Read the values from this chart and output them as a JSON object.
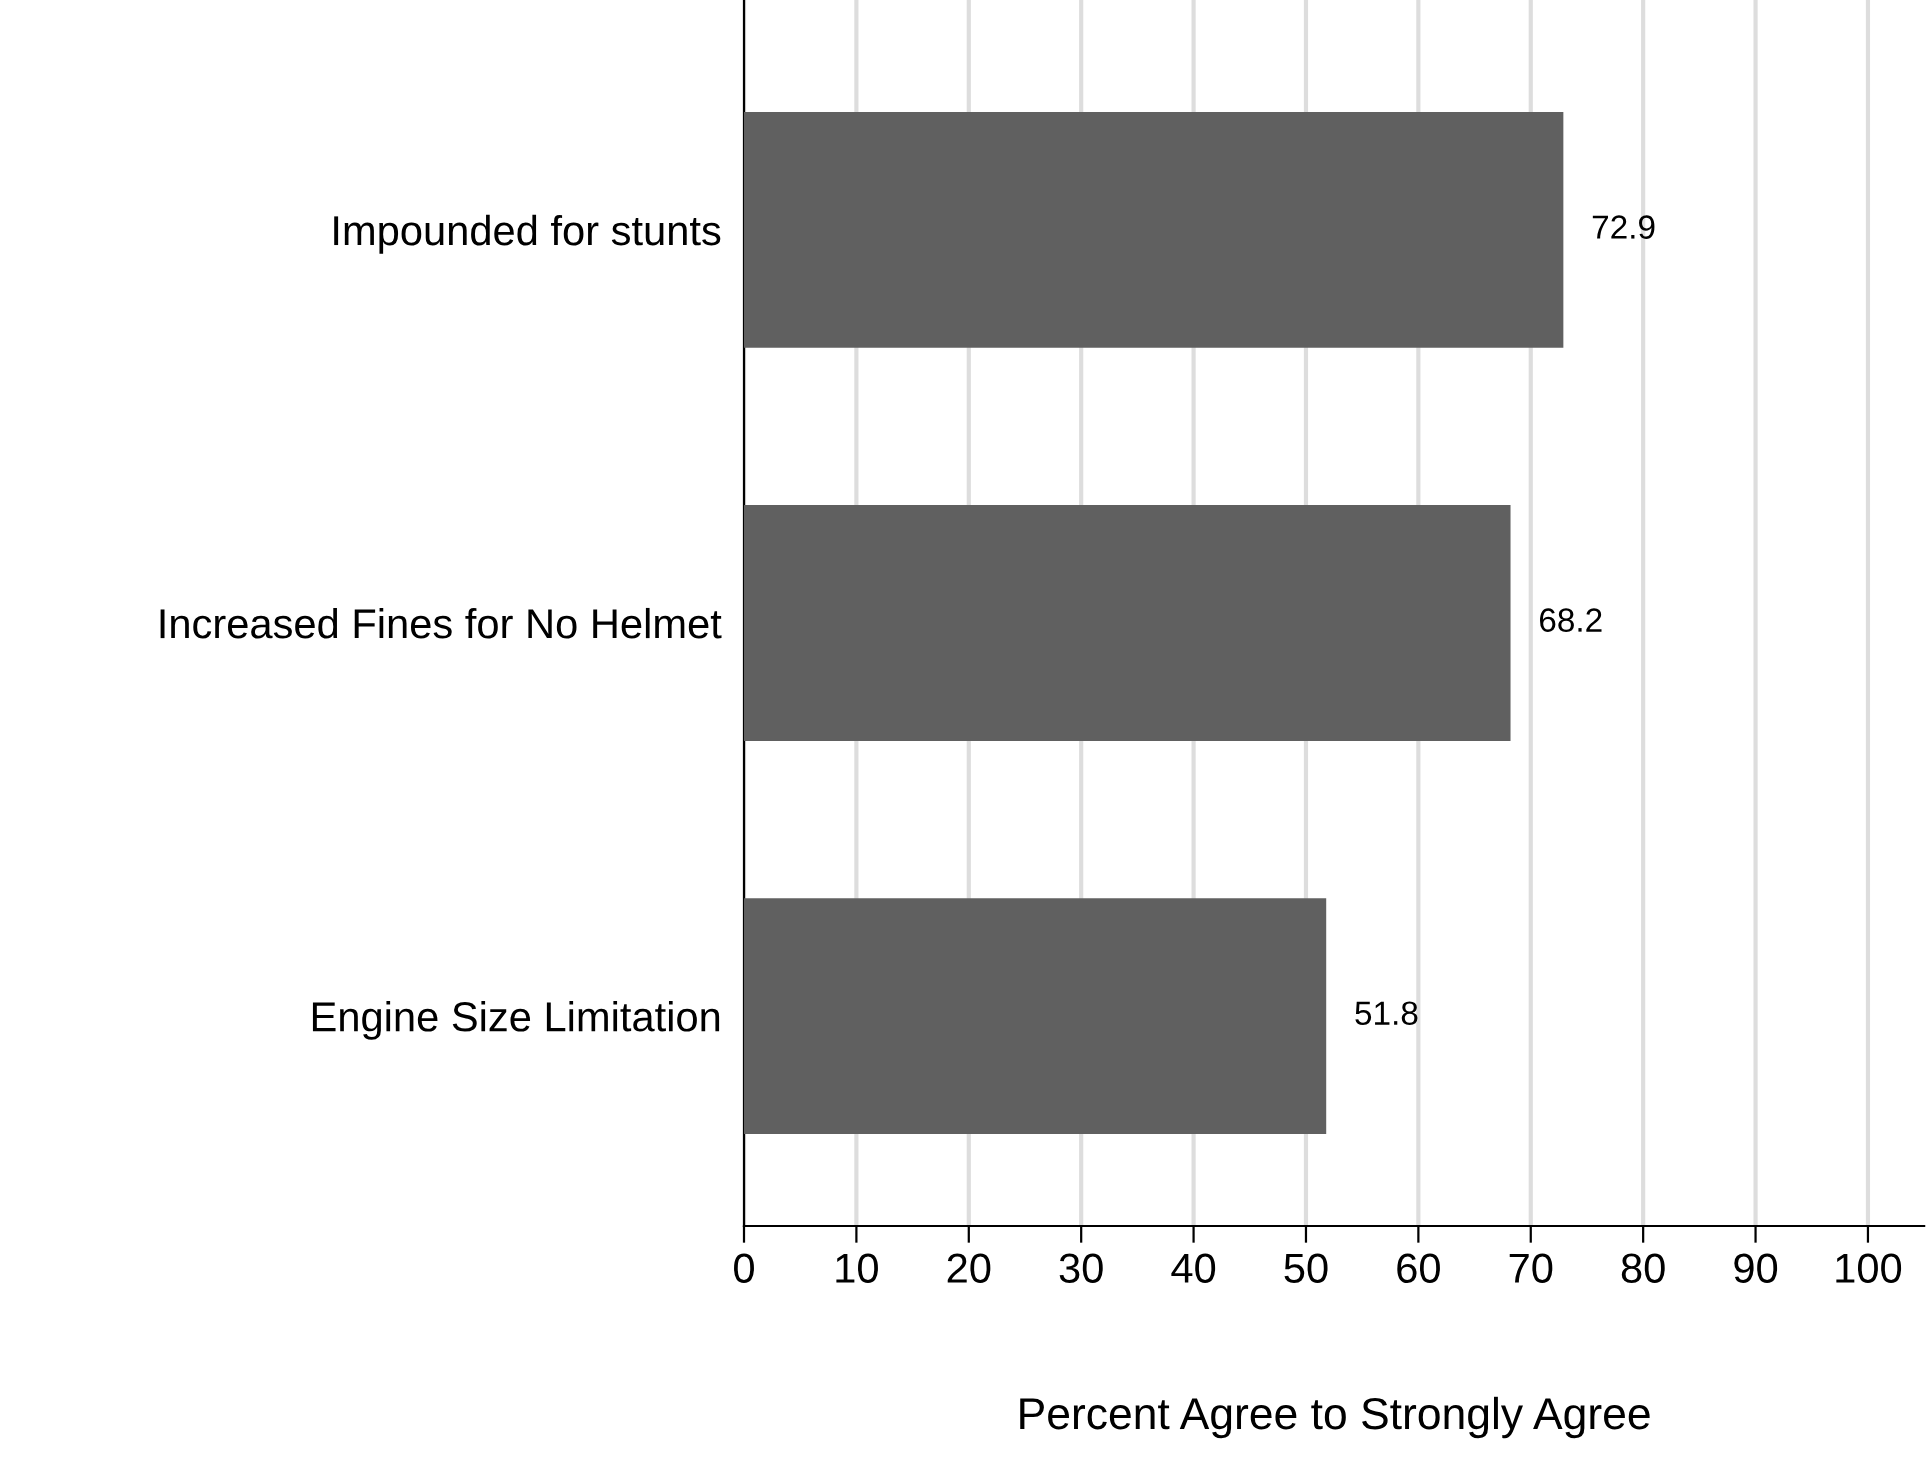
{
  "chart_data": {
    "type": "bar",
    "orientation": "horizontal",
    "xlabel": "Percent Agree to Strongly Agree",
    "categories": [
      "Impounded for stunts",
      "Increased Fines for No Helmet",
      "Engine Size Limitation"
    ],
    "values": [
      72.9,
      68.2,
      51.8
    ],
    "color": "#606060",
    "data_labels": true,
    "xlim": [
      0,
      105
    ],
    "xticks": [
      0,
      10,
      20,
      30,
      40,
      50,
      60,
      70,
      80,
      90,
      100
    ],
    "grid": "x",
    "legend": false
  }
}
